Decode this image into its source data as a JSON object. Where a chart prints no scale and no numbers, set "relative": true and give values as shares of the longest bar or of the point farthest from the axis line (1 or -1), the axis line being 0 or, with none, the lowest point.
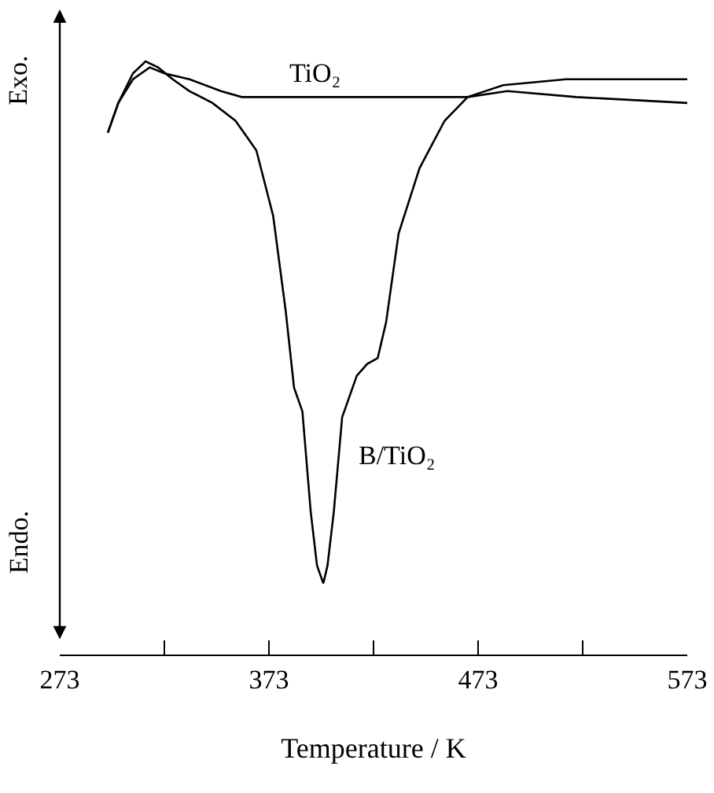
{
  "chart_data": {
    "type": "line",
    "relative": true,
    "xlabel": "Temperature / K",
    "xlim": [
      273,
      573
    ],
    "xticks": [
      273,
      {
        "value": 323,
        "label": null
      },
      373,
      {
        "value": 423,
        "label": null
      },
      473,
      {
        "value": 523,
        "label": null
      },
      573
    ],
    "annotations": [
      "Exo.",
      "Endo."
    ],
    "legend": false,
    "marker": "none",
    "line_style": "solid",
    "series": [
      {
        "name": "TiO₂",
        "color": "#000000",
        "x": [
          296,
          301,
          308,
          316,
          323,
          335,
          350,
          360,
          395,
          432,
          468,
          487,
          520,
          573
        ],
        "values": [
          0.88,
          0.93,
          0.97,
          0.99,
          0.98,
          0.97,
          0.95,
          0.94,
          0.94,
          0.94,
          0.94,
          0.95,
          0.94,
          0.93
        ]
      },
      {
        "name": "B/TiO₂",
        "color": "#000000",
        "x": [
          296,
          301,
          308,
          314,
          320,
          327,
          335,
          346,
          357,
          363,
          367,
          375,
          381,
          385,
          389,
          393,
          396,
          399,
          401,
          404,
          408,
          415,
          420,
          425,
          429,
          435,
          445,
          457,
          468,
          485,
          515,
          573
        ],
        "values": [
          0.88,
          0.93,
          0.98,
          1.0,
          0.99,
          0.97,
          0.95,
          0.93,
          0.9,
          0.87,
          0.85,
          0.74,
          0.58,
          0.45,
          0.41,
          0.24,
          0.15,
          0.12,
          0.15,
          0.24,
          0.4,
          0.47,
          0.49,
          0.5,
          0.56,
          0.71,
          0.82,
          0.9,
          0.94,
          0.96,
          0.97,
          0.97
        ]
      }
    ]
  }
}
